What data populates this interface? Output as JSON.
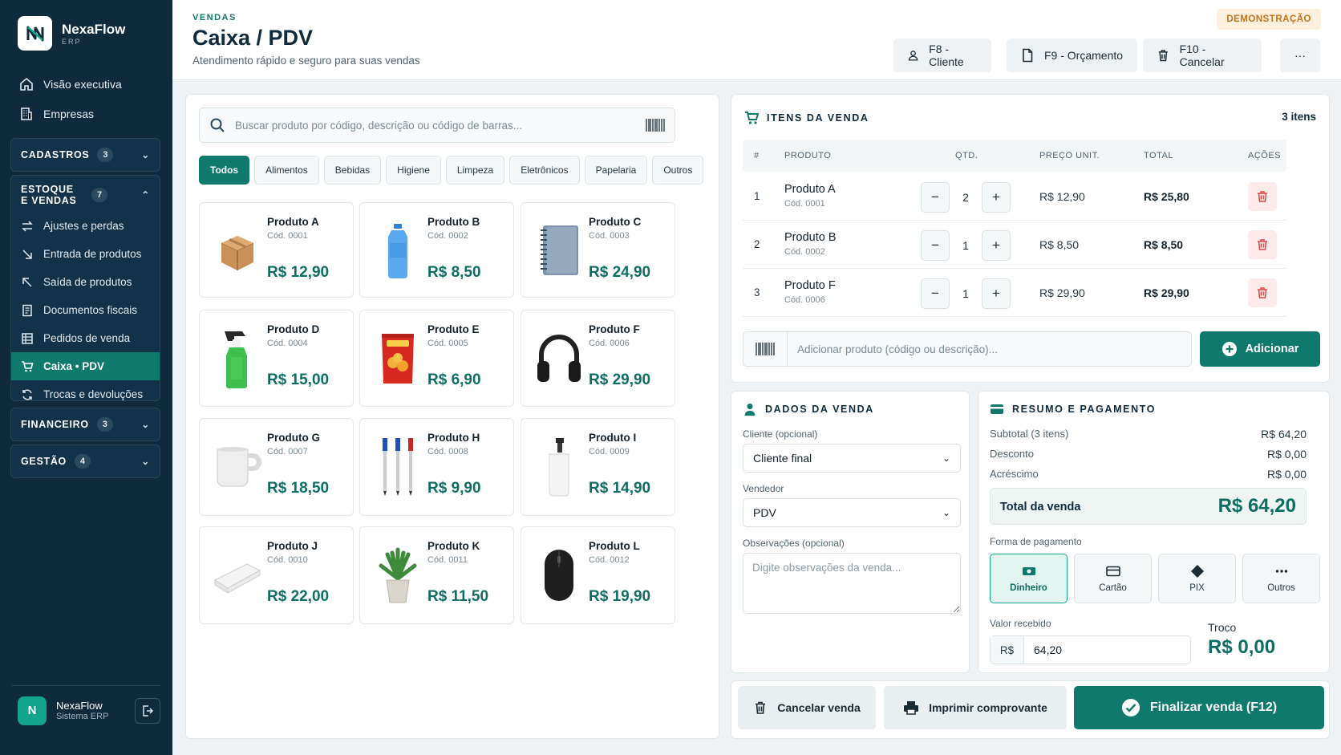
{
  "brand": {
    "name": "NexaFlow",
    "sub": "ERP"
  },
  "sidebar": {
    "top_items": [
      {
        "label": "Visão executiva",
        "icon": "home-icon"
      },
      {
        "label": "Empresas",
        "icon": "building-icon"
      }
    ],
    "groups": [
      {
        "label": "CADASTROS",
        "count": "3",
        "expanded": false
      },
      {
        "label": "ESTOQUE E VENDAS",
        "count": "7",
        "expanded": true
      },
      {
        "label": "FINANCEIRO",
        "count": "3",
        "expanded": false
      },
      {
        "label": "GESTÃO",
        "count": "4",
        "expanded": false
      }
    ],
    "estoque_items": [
      {
        "label": "Ajustes e perdas"
      },
      {
        "label": "Entrada de produtos"
      },
      {
        "label": "Saída de produtos"
      },
      {
        "label": "Documentos fiscais"
      },
      {
        "label": "Pedidos de venda"
      },
      {
        "label": "Caixa • PDV",
        "active": true
      },
      {
        "label": "Trocas e devoluções"
      }
    ],
    "user": {
      "initial": "N",
      "name": "NexaFlow",
      "sub": "Sistema ERP"
    }
  },
  "header": {
    "breadcrumb": "VENDAS",
    "title": "Caixa / PDV",
    "subtitle": "Atendimento rápido e seguro para suas vendas",
    "badge": "DEMONSTRAÇÃO",
    "buttons": {
      "client": "F8 - Cliente",
      "quote": "F9 - Orçamento",
      "cancel": "F10 - Cancelar",
      "more": "···"
    }
  },
  "catalog": {
    "search_placeholder": "Buscar produto por código, descrição ou código de barras...",
    "categories": [
      "Todos",
      "Alimentos",
      "Bebidas",
      "Higiene",
      "Limpeza",
      "Eletrônicos",
      "Papelaria",
      "Outros"
    ],
    "active_category": "Todos",
    "products": [
      {
        "name": "Produto A",
        "code": "Cód. 0001",
        "price": "R$ 12,90",
        "icon": "box-icon"
      },
      {
        "name": "Produto B",
        "code": "Cód. 0002",
        "price": "R$ 8,50",
        "icon": "water-bottle-icon"
      },
      {
        "name": "Produto C",
        "code": "Cód. 0003",
        "price": "R$ 24,90",
        "icon": "notebook-icon"
      },
      {
        "name": "Produto D",
        "code": "Cód. 0004",
        "price": "R$ 15,00",
        "icon": "spray-bottle-icon"
      },
      {
        "name": "Produto E",
        "code": "Cód. 0005",
        "price": "R$ 6,90",
        "icon": "snack-bag-icon"
      },
      {
        "name": "Produto F",
        "code": "Cód. 0006",
        "price": "R$ 29,90",
        "icon": "headphones-icon"
      },
      {
        "name": "Produto G",
        "code": "Cód. 0007",
        "price": "R$ 18,50",
        "icon": "mug-icon"
      },
      {
        "name": "Produto H",
        "code": "Cód. 0008",
        "price": "R$ 9,90",
        "icon": "pens-icon"
      },
      {
        "name": "Produto I",
        "code": "Cód. 0009",
        "price": "R$ 14,90",
        "icon": "soap-dispenser-icon"
      },
      {
        "name": "Produto J",
        "code": "Cód. 0010",
        "price": "R$ 22,00",
        "icon": "towel-icon"
      },
      {
        "name": "Produto K",
        "code": "Cód. 0011",
        "price": "R$ 11,50",
        "icon": "plant-icon"
      },
      {
        "name": "Produto L",
        "code": "Cód. 0012",
        "price": "R$ 19,90",
        "icon": "mouse-icon"
      }
    ]
  },
  "items": {
    "title": "ITENS DA VENDA",
    "count": "3 itens",
    "columns": [
      "#",
      "PRODUTO",
      "QTD.",
      "PREÇO UNIT.",
      "TOTAL",
      "AÇÕES"
    ],
    "rows": [
      {
        "n": "1",
        "name": "Produto A",
        "code": "Cód. 0001",
        "qty": "2",
        "unit": "R$ 12,90",
        "total": "R$ 25,80"
      },
      {
        "n": "2",
        "name": "Produto B",
        "code": "Cód. 0002",
        "qty": "1",
        "unit": "R$ 8,50",
        "total": "R$ 8,50"
      },
      {
        "n": "3",
        "name": "Produto F",
        "code": "Cód. 0006",
        "qty": "1",
        "unit": "R$ 29,90",
        "total": "R$ 29,90"
      }
    ],
    "add_placeholder": "Adicionar produto (código ou descrição)...",
    "add_label": "Adicionar"
  },
  "sale": {
    "title": "DADOS DA VENDA",
    "client_label": "Cliente (opcional)",
    "client_value": "Cliente final",
    "seller_label": "Vendedor",
    "seller_value": "PDV",
    "notes_label": "Observações (opcional)",
    "notes_placeholder": "Digite observações da venda..."
  },
  "summary": {
    "title": "RESUMO E PAGAMENTO",
    "subtotal_label": "Subtotal (3 itens)",
    "subtotal": "R$ 64,20",
    "discount_label": "Desconto",
    "discount": "R$ 0,00",
    "surcharge_label": "Acréscimo",
    "surcharge": "R$ 0,00",
    "total_label": "Total da venda",
    "total": "R$ 64,20",
    "payment_label": "Forma de pagamento",
    "methods": [
      {
        "label": "Dinheiro",
        "icon": "cash-icon",
        "active": true
      },
      {
        "label": "Cartão",
        "icon": "card-icon"
      },
      {
        "label": "PIX",
        "icon": "pix-icon"
      },
      {
        "label": "Outros",
        "icon": "more-icon"
      }
    ],
    "received_label": "Valor recebido",
    "currency": "R$",
    "received_value": "64,20",
    "change_label": "Troco",
    "change_value": "R$ 0,00"
  },
  "footer": {
    "cancel": "Cancelar venda",
    "print": "Imprimir comprovante",
    "finish": "Finalizar venda (F12)"
  },
  "colors": {
    "primary": "#0f7a6c",
    "sidebar": "#0f2a3d",
    "accent": "#13a48f",
    "danger": "#e04848"
  }
}
